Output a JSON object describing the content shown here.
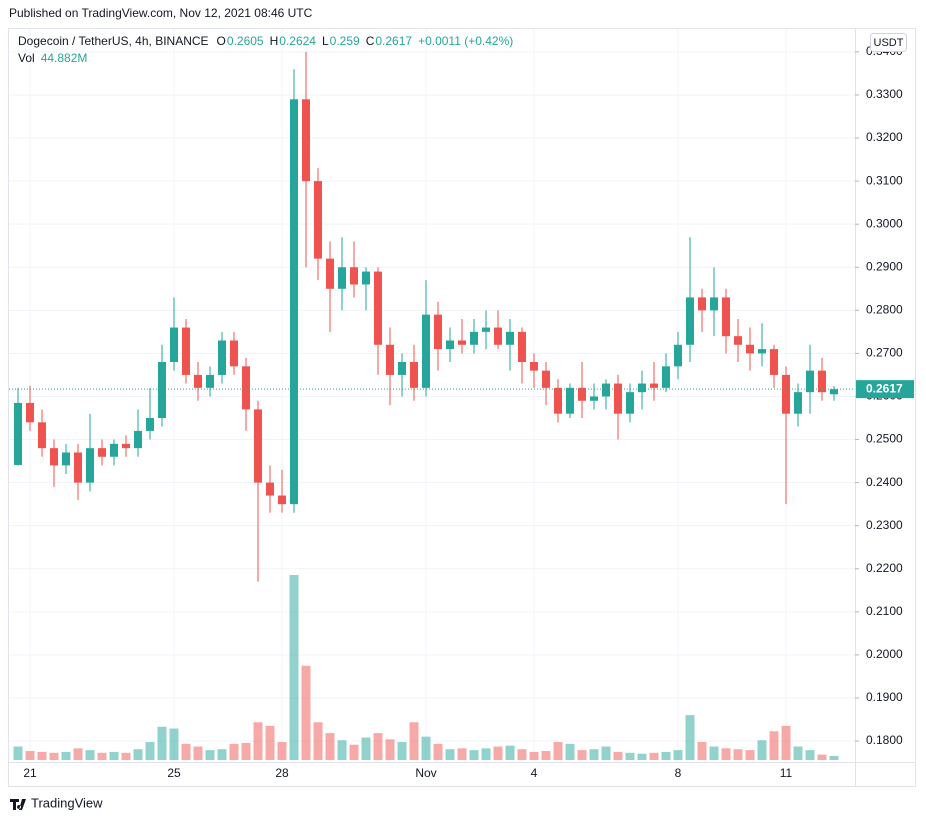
{
  "header": "Published on TradingView.com, Nov 12, 2021 08:46 UTC",
  "footer": "TradingView",
  "chart_data": {
    "type": "candlestick",
    "symbol": "Dogecoin / TetherUS, 4h, BINANCE",
    "field_names": [
      "O",
      "H",
      "L",
      "C"
    ],
    "change": "+0.0011 (+0.42%)",
    "currency": "USDT",
    "up_color": "#26a69a",
    "down_color": "#ef5350",
    "grid": true,
    "categories": [
      null,
      "21",
      null,
      null,
      null,
      null,
      null,
      null,
      null,
      null,
      null,
      null,
      null,
      "25",
      null,
      null,
      null,
      null,
      null,
      null,
      null,
      null,
      "28",
      null,
      null,
      null,
      null,
      null,
      null,
      null,
      null,
      null,
      null,
      null,
      "Nov",
      null,
      null,
      null,
      null,
      null,
      null,
      null,
      null,
      "4",
      null,
      null,
      null,
      null,
      null,
      null,
      null,
      null,
      null,
      null,
      null,
      "8",
      null,
      null,
      null,
      null,
      null,
      null,
      null,
      null,
      "11",
      null,
      null,
      null,
      null
    ],
    "open": [
      0.2441,
      0.2585,
      0.254,
      0.248,
      0.244,
      0.247,
      0.24,
      0.248,
      0.246,
      0.249,
      0.248,
      0.252,
      0.255,
      0.268,
      0.276,
      0.265,
      0.262,
      0.265,
      0.273,
      0.267,
      0.257,
      0.24,
      0.237,
      0.235,
      0.329,
      0.31,
      0.292,
      0.285,
      0.29,
      0.286,
      0.289,
      0.272,
      0.265,
      0.268,
      0.262,
      0.279,
      0.271,
      0.273,
      0.272,
      0.275,
      0.276,
      0.272,
      0.275,
      0.268,
      0.266,
      0.262,
      0.256,
      0.262,
      0.259,
      0.26,
      0.263,
      0.256,
      0.261,
      0.263,
      0.262,
      0.267,
      0.272,
      0.283,
      0.28,
      0.283,
      0.274,
      0.272,
      0.27,
      0.271,
      0.265,
      0.256,
      0.261,
      0.266,
      0.2605
    ],
    "high": [
      0.262,
      0.2625,
      0.257,
      0.25,
      0.249,
      0.249,
      0.256,
      0.25,
      0.25,
      0.251,
      0.257,
      0.262,
      0.272,
      0.283,
      0.278,
      0.268,
      0.267,
      0.275,
      0.275,
      0.269,
      0.259,
      0.244,
      0.243,
      0.336,
      0.34,
      0.313,
      0.296,
      0.297,
      0.296,
      0.29,
      0.29,
      0.276,
      0.27,
      0.272,
      0.287,
      0.282,
      0.276,
      0.278,
      0.278,
      0.28,
      0.28,
      0.278,
      0.276,
      0.27,
      0.268,
      0.264,
      0.263,
      0.268,
      0.263,
      0.264,
      0.265,
      0.263,
      0.266,
      0.268,
      0.27,
      0.275,
      0.297,
      0.285,
      0.29,
      0.285,
      0.278,
      0.276,
      0.277,
      0.272,
      0.267,
      0.263,
      0.272,
      0.269,
      0.2624
    ],
    "low": [
      0.244,
      0.252,
      0.246,
      0.239,
      0.242,
      0.236,
      0.238,
      0.244,
      0.244,
      0.246,
      0.246,
      0.25,
      0.253,
      0.266,
      0.263,
      0.259,
      0.26,
      0.263,
      0.265,
      0.252,
      0.217,
      0.233,
      0.233,
      0.233,
      0.29,
      0.287,
      0.275,
      0.28,
      0.283,
      0.28,
      0.265,
      0.258,
      0.26,
      0.259,
      0.26,
      0.266,
      0.268,
      0.27,
      0.27,
      0.271,
      0.271,
      0.266,
      0.263,
      0.262,
      0.258,
      0.254,
      0.255,
      0.255,
      0.257,
      0.257,
      0.25,
      0.254,
      0.257,
      0.259,
      0.261,
      0.264,
      0.268,
      0.275,
      0.274,
      0.27,
      0.268,
      0.266,
      0.267,
      0.262,
      0.235,
      0.253,
      0.256,
      0.259,
      0.259
    ],
    "close": [
      0.2585,
      0.254,
      0.248,
      0.244,
      0.247,
      0.24,
      0.248,
      0.246,
      0.249,
      0.248,
      0.252,
      0.255,
      0.268,
      0.276,
      0.265,
      0.262,
      0.265,
      0.273,
      0.267,
      0.257,
      0.24,
      0.237,
      0.235,
      0.329,
      0.31,
      0.292,
      0.285,
      0.29,
      0.286,
      0.289,
      0.272,
      0.265,
      0.268,
      0.262,
      0.279,
      0.271,
      0.273,
      0.272,
      0.275,
      0.276,
      0.272,
      0.275,
      0.268,
      0.266,
      0.262,
      0.256,
      0.262,
      0.259,
      0.26,
      0.263,
      0.256,
      0.261,
      0.263,
      0.262,
      0.267,
      0.272,
      0.283,
      0.28,
      0.283,
      0.274,
      0.272,
      0.27,
      0.271,
      0.265,
      0.256,
      0.261,
      0.266,
      0.261,
      0.2617
    ],
    "volume": {
      "name": "Vol",
      "last_label": "44.882M",
      "values": [
        150,
        100,
        90,
        80,
        90,
        130,
        110,
        80,
        90,
        80,
        120,
        200,
        370,
        350,
        180,
        150,
        110,
        120,
        180,
        190,
        420,
        380,
        200,
        2060,
        1050,
        420,
        300,
        220,
        170,
        250,
        300,
        230,
        200,
        420,
        260,
        180,
        120,
        130,
        110,
        130,
        150,
        160,
        120,
        90,
        100,
        200,
        180,
        110,
        120,
        150,
        90,
        80,
        70,
        80,
        90,
        110,
        500,
        200,
        150,
        130,
        120,
        110,
        220,
        320,
        380,
        150,
        110,
        60,
        44.882
      ]
    },
    "ylim": [
      0.1756,
      0.3416
    ],
    "yticks": [
      {
        "value": 0.18,
        "label": "0.1800"
      },
      {
        "value": 0.19,
        "label": "0.1900"
      },
      {
        "value": 0.2,
        "label": "0.2000"
      },
      {
        "value": 0.21,
        "label": "0.2100"
      },
      {
        "value": 0.22,
        "label": "0.2200"
      },
      {
        "value": 0.23,
        "label": "0.2300"
      },
      {
        "value": 0.24,
        "label": "0.2400"
      },
      {
        "value": 0.25,
        "label": "0.2500"
      },
      {
        "value": 0.26,
        "label": "0.2600"
      },
      {
        "value": 0.27,
        "label": "0.2700"
      },
      {
        "value": 0.28,
        "label": "0.2800"
      },
      {
        "value": 0.29,
        "label": "0.2900"
      },
      {
        "value": 0.3,
        "label": "0.3000"
      },
      {
        "value": 0.31,
        "label": "0.3100"
      },
      {
        "value": 0.32,
        "label": "0.3200"
      },
      {
        "value": 0.33,
        "label": "0.3300"
      },
      {
        "value": 0.34,
        "label": "0.3400"
      }
    ]
  }
}
